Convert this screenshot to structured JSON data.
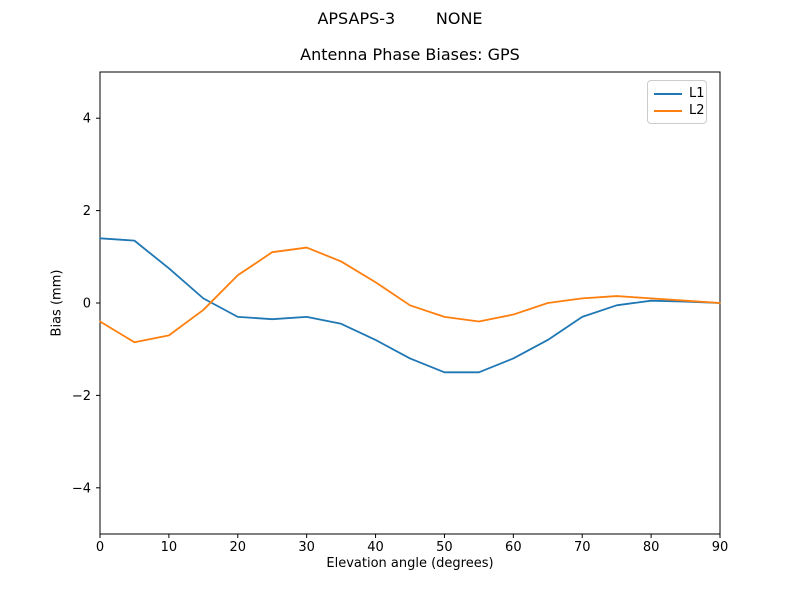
{
  "figure": {
    "background": "#ffffff",
    "text_color": "#000000",
    "frame_color": "#000000"
  },
  "chart_data": {
    "type": "line",
    "suptitle": "APSAPS-3        NONE",
    "title": "Antenna Phase Biases: GPS",
    "xlabel": "Elevation angle (degrees)",
    "ylabel": "Bias (mm)",
    "xlim": [
      0,
      90
    ],
    "ylim": [
      -5,
      5
    ],
    "grid": false,
    "legend": {
      "position": "upper right"
    },
    "xticks": [
      {
        "v": 0,
        "label": "0"
      },
      {
        "v": 10,
        "label": "10"
      },
      {
        "v": 20,
        "label": "20"
      },
      {
        "v": 30,
        "label": "30"
      },
      {
        "v": 40,
        "label": "40"
      },
      {
        "v": 50,
        "label": "50"
      },
      {
        "v": 60,
        "label": "60"
      },
      {
        "v": 70,
        "label": "70"
      },
      {
        "v": 80,
        "label": "80"
      },
      {
        "v": 90,
        "label": "90"
      }
    ],
    "yticks": [
      {
        "v": -4,
        "label": "−4"
      },
      {
        "v": -2,
        "label": "−2"
      },
      {
        "v": 0,
        "label": "0"
      },
      {
        "v": 2,
        "label": "2"
      },
      {
        "v": 4,
        "label": "4"
      }
    ],
    "x": [
      0,
      5,
      10,
      15,
      20,
      25,
      30,
      35,
      40,
      45,
      50,
      55,
      60,
      65,
      70,
      75,
      80,
      85,
      90
    ],
    "series": [
      {
        "name": "L1",
        "color": "#1f77b4",
        "values": [
          1.4,
          1.35,
          0.75,
          0.1,
          -0.3,
          -0.35,
          -0.3,
          -0.45,
          -0.8,
          -1.2,
          -1.5,
          -1.5,
          -1.2,
          -0.8,
          -0.3,
          -0.05,
          0.05,
          0.03,
          0.0
        ]
      },
      {
        "name": "L2",
        "color": "#ff7f0e",
        "values": [
          -0.4,
          -0.85,
          -0.7,
          -0.15,
          0.6,
          1.1,
          1.2,
          0.9,
          0.45,
          -0.05,
          -0.3,
          -0.4,
          -0.25,
          0.0,
          0.1,
          0.15,
          0.1,
          0.05,
          0.0
        ]
      }
    ]
  }
}
